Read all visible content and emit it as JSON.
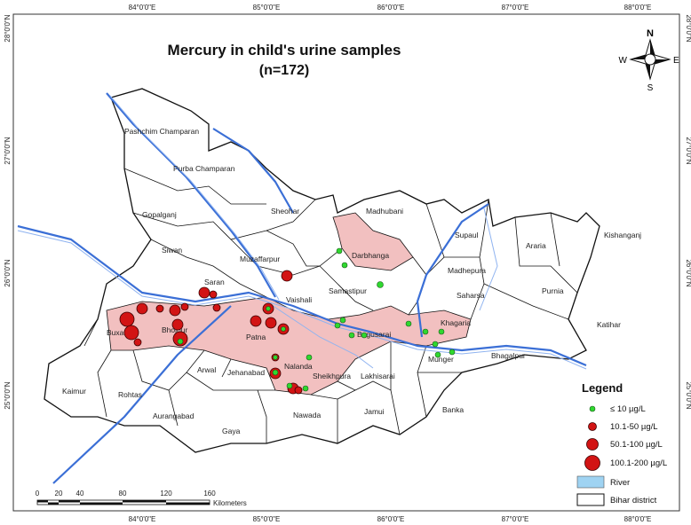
{
  "title": [
    "Mercury in child's urine samples",
    "(n=172)"
  ],
  "compass": {
    "n": "N",
    "e": "E",
    "s": "S",
    "w": "W"
  },
  "longitude_labels": [
    "84°0'0\"E",
    "85°0'0\"E",
    "86°0'0\"E",
    "87°0'0\"E",
    "88°0'0\"E"
  ],
  "latitude_labels": [
    "28°0'0\"N",
    "27°0'0\"N",
    "26°0'0\"N",
    "25°0'0\"N"
  ],
  "districts": [
    "Pashchim Champaran",
    "Purba Champaran",
    "Sheohar",
    "Gopalganj",
    "Siwan",
    "Saran",
    "Muzaffarpur",
    "Vaishali",
    "Madhubani",
    "Darbhanga",
    "Supaul",
    "Araria",
    "Kishanganj",
    "Madhepura",
    "Samastipur",
    "Saharsa",
    "Purnia",
    "Katihar",
    "Begusarai",
    "Khagaria",
    "Buxar",
    "Bhojpur",
    "Patna",
    "Nalanda",
    "Bhagalpur",
    "Munger",
    "Sheikhpura",
    "Lakhisarai",
    "Arwal",
    "Jehanabad",
    "Kaimur",
    "Rohtas",
    "Aurangabad",
    "Gaya",
    "Nawada",
    "Jamui",
    "Banka"
  ],
  "legend": {
    "title": "Legend",
    "items": [
      "≤ 10 µg/L",
      "10.1-50 µg/L",
      "50.1-100 µg/L",
      "100.1-200 µg/L",
      "River",
      "Bihar district"
    ]
  },
  "scale_bar": {
    "ticks": [
      0,
      20,
      40,
      80,
      120,
      160
    ],
    "unit": "Kilometers"
  }
}
